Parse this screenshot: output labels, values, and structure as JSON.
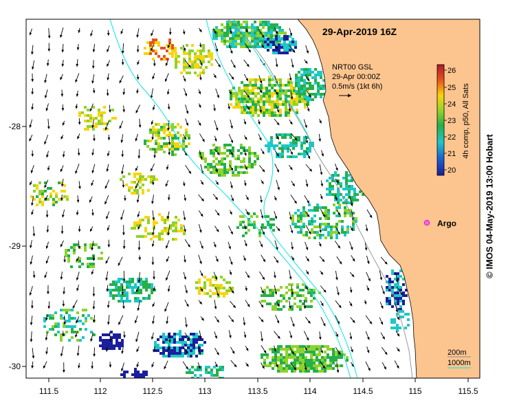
{
  "title": "29-Apr-2019 16Z",
  "current_legend": {
    "line1": "NRT00 GSL",
    "line2": "29-Apr 00:00Z",
    "line3": "0.5m/s (1kt 6h)"
  },
  "colorbar": {
    "label": "4h comp, p50, All Sats",
    "ticks": [
      "26",
      "25",
      "24",
      "23",
      "22",
      "21",
      "20"
    ],
    "colors": {
      "c26": "#b2182b",
      "c25": "#e8541c",
      "c24": "#f7d50e",
      "c23": "#8fd32a",
      "c22": "#25b04a",
      "c21": "#1fc7c7",
      "c20": "#1a1f9c"
    }
  },
  "x_ticks": [
    "111.5",
    "112",
    "112.5",
    "113",
    "113.5",
    "114",
    "114.5",
    "115",
    "115.5"
  ],
  "y_ticks": [
    "-28",
    "-29",
    "-30"
  ],
  "argo_label": "Argo",
  "isobath_legend": {
    "label_200": "200m",
    "label_1000": "1000m"
  },
  "credit": "© IMOS 04-May-2019 13:00 Hobart",
  "colors": {
    "land": "#fcc58f",
    "ocean": "#ffffff",
    "isobath_200": "#8c8c8c",
    "isobath_1000": "#00e5e5",
    "argo": "#e81ee8",
    "arrows": "#000000"
  }
}
